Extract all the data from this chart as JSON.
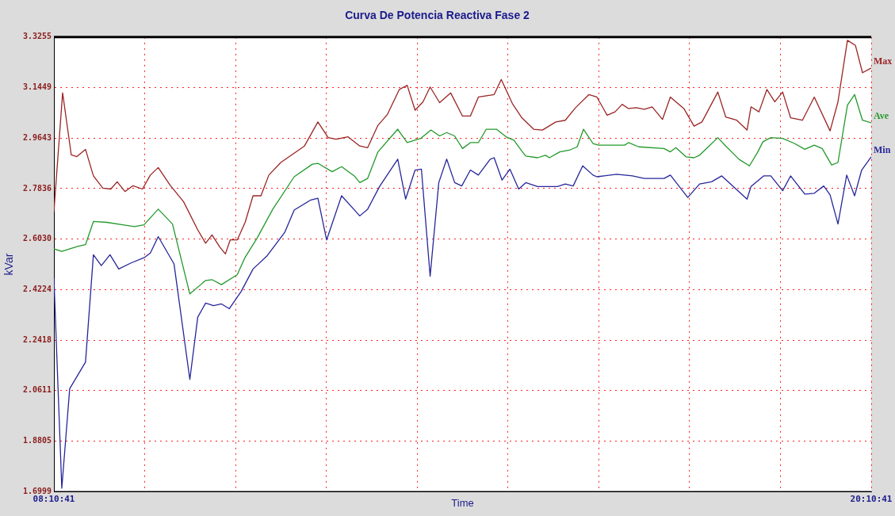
{
  "chart_data": {
    "type": "line",
    "title": "Curva De Potencia Reactiva Fase 2",
    "xlabel": "Time",
    "ylabel": "kVar",
    "xlim": [
      8.1781,
      20.1781
    ],
    "xticks": [
      {
        "value": 8.1781,
        "label": "08:10:41"
      },
      {
        "value": 9.5114,
        "label": null
      },
      {
        "value": 10.8447,
        "label": null
      },
      {
        "value": 12.1781,
        "label": null
      },
      {
        "value": 13.5114,
        "label": null
      },
      {
        "value": 14.8447,
        "label": null
      },
      {
        "value": 16.1781,
        "label": null
      },
      {
        "value": 17.5114,
        "label": null
      },
      {
        "value": 18.8447,
        "label": null
      },
      {
        "value": 20.1781,
        "label": "20:10:41"
      }
    ],
    "ylim": [
      1.6999,
      3.3255
    ],
    "yticks": [
      1.6999,
      1.8805,
      2.0611,
      2.2418,
      2.4224,
      {
        "value": 2.603,
        "label": "2.6030"
      },
      2.7836,
      2.9643,
      3.1449,
      3.3255
    ],
    "grid": true,
    "legend": false,
    "marker": "none",
    "line_style": "solid",
    "series": [
      {
        "name": "Max",
        "color": "#9b2424",
        "x": [
          8.1781,
          8.306,
          8.433,
          8.515,
          8.642,
          8.758,
          8.897,
          9.014,
          9.107,
          9.222,
          9.339,
          9.478,
          9.594,
          9.71,
          9.884,
          10.081,
          10.29,
          10.406,
          10.499,
          10.615,
          10.696,
          10.766,
          10.87,
          10.986,
          11.102,
          11.218,
          11.334,
          11.509,
          11.857,
          12.054,
          12.205,
          12.321,
          12.495,
          12.669,
          12.785,
          12.936,
          13.075,
          13.249,
          13.365,
          13.481,
          13.597,
          13.702,
          13.841,
          14.003,
          14.177,
          14.293,
          14.41,
          14.642,
          14.746,
          14.909,
          15.048,
          15.222,
          15.35,
          15.547,
          15.686,
          15.837,
          16.034,
          16.15,
          16.301,
          16.417,
          16.521,
          16.614,
          16.73,
          16.846,
          16.962,
          17.113,
          17.229,
          17.427,
          17.577,
          17.693,
          17.926,
          18.042,
          18.204,
          18.355,
          18.413,
          18.53,
          18.646,
          18.762,
          18.878,
          18.994,
          19.168,
          19.342,
          19.574,
          19.69,
          19.829,
          19.946,
          20.05,
          20.155,
          20.178
        ],
        "values": [
          2.701,
          3.126,
          2.904,
          2.898,
          2.924,
          2.829,
          2.785,
          2.782,
          2.808,
          2.773,
          2.794,
          2.782,
          2.832,
          2.859,
          2.796,
          2.737,
          2.636,
          2.588,
          2.618,
          2.574,
          2.55,
          2.6,
          2.6,
          2.663,
          2.758,
          2.758,
          2.832,
          2.877,
          2.936,
          3.022,
          2.966,
          2.96,
          2.969,
          2.936,
          2.93,
          3.01,
          3.049,
          3.138,
          3.153,
          3.064,
          3.094,
          3.147,
          3.091,
          3.126,
          3.043,
          3.043,
          3.111,
          3.12,
          3.174,
          3.088,
          3.037,
          2.996,
          2.993,
          3.022,
          3.028,
          3.073,
          3.12,
          3.111,
          3.046,
          3.058,
          3.085,
          3.07,
          3.073,
          3.067,
          3.076,
          3.031,
          3.111,
          3.07,
          3.007,
          3.022,
          3.129,
          3.04,
          3.028,
          2.993,
          3.076,
          3.058,
          3.138,
          3.094,
          3.129,
          3.037,
          3.028,
          3.111,
          2.99,
          3.094,
          3.314,
          3.296,
          3.198,
          3.212,
          3.215
        ]
      },
      {
        "name": "Ave",
        "color": "#22992a",
        "x": [
          8.1781,
          8.294,
          8.526,
          8.642,
          8.758,
          8.955,
          9.188,
          9.362,
          9.501,
          9.71,
          9.919,
          10.174,
          10.406,
          10.499,
          10.638,
          10.87,
          10.986,
          11.16,
          11.392,
          11.706,
          11.973,
          12.054,
          12.263,
          12.402,
          12.588,
          12.669,
          12.785,
          12.936,
          13.226,
          13.365,
          13.562,
          13.713,
          13.841,
          13.945,
          14.062,
          14.177,
          14.293,
          14.41,
          14.526,
          14.677,
          14.816,
          14.932,
          15.048,
          15.106,
          15.28,
          15.396,
          15.454,
          15.605,
          15.745,
          15.861,
          15.954,
          16.093,
          16.174,
          16.557,
          16.614,
          16.765,
          17.136,
          17.229,
          17.31,
          17.461,
          17.577,
          17.658,
          17.774,
          17.926,
          18.042,
          18.239,
          18.39,
          18.507,
          18.588,
          18.704,
          18.878,
          19.052,
          19.203,
          19.342,
          19.458,
          19.597,
          19.69,
          19.829,
          19.934,
          20.05,
          20.178
        ],
        "values": [
          2.568,
          2.559,
          2.577,
          2.583,
          2.666,
          2.663,
          2.654,
          2.648,
          2.654,
          2.71,
          2.657,
          2.407,
          2.455,
          2.458,
          2.44,
          2.476,
          2.538,
          2.606,
          2.71,
          2.826,
          2.871,
          2.874,
          2.844,
          2.862,
          2.829,
          2.805,
          2.82,
          2.915,
          2.996,
          2.948,
          2.963,
          2.993,
          2.972,
          2.984,
          2.972,
          2.927,
          2.948,
          2.948,
          2.996,
          2.996,
          2.969,
          2.957,
          2.918,
          2.9,
          2.894,
          2.903,
          2.894,
          2.915,
          2.921,
          2.933,
          2.996,
          2.945,
          2.939,
          2.939,
          2.948,
          2.933,
          2.927,
          2.915,
          2.93,
          2.897,
          2.894,
          2.903,
          2.93,
          2.966,
          2.936,
          2.888,
          2.865,
          2.912,
          2.951,
          2.966,
          2.963,
          2.945,
          2.924,
          2.939,
          2.927,
          2.868,
          2.877,
          3.082,
          3.12,
          3.028,
          3.019
        ]
      },
      {
        "name": "Min",
        "color": "#26269a",
        "x": [
          8.1781,
          8.294,
          8.41,
          8.642,
          8.758,
          8.874,
          9.002,
          9.13,
          9.304,
          9.513,
          9.594,
          9.71,
          9.942,
          10.174,
          10.29,
          10.406,
          10.522,
          10.638,
          10.754,
          10.928,
          11.102,
          11.311,
          11.567,
          11.706,
          11.95,
          12.054,
          12.182,
          12.402,
          12.669,
          12.785,
          12.959,
          13.226,
          13.342,
          13.481,
          13.574,
          13.702,
          13.829,
          13.945,
          14.062,
          14.166,
          14.293,
          14.41,
          14.584,
          14.642,
          14.758,
          14.874,
          15.002,
          15.106,
          15.28,
          15.57,
          15.686,
          15.802,
          15.942,
          16.093,
          16.15,
          16.44,
          16.672,
          16.846,
          17.137,
          17.229,
          17.485,
          17.658,
          17.833,
          17.984,
          18.355,
          18.413,
          18.599,
          18.704,
          18.878,
          18.994,
          19.203,
          19.342,
          19.481,
          19.574,
          19.69,
          19.818,
          19.934,
          20.038,
          20.178
        ],
        "values": [
          2.464,
          1.712,
          2.068,
          2.163,
          2.547,
          2.508,
          2.547,
          2.496,
          2.517,
          2.538,
          2.553,
          2.612,
          2.514,
          2.101,
          2.324,
          2.374,
          2.365,
          2.371,
          2.354,
          2.416,
          2.496,
          2.544,
          2.627,
          2.707,
          2.743,
          2.749,
          2.6,
          2.758,
          2.686,
          2.71,
          2.791,
          2.889,
          2.746,
          2.85,
          2.853,
          2.47,
          2.805,
          2.889,
          2.805,
          2.793,
          2.85,
          2.832,
          2.889,
          2.894,
          2.814,
          2.853,
          2.782,
          2.805,
          2.791,
          2.791,
          2.8,
          2.793,
          2.865,
          2.832,
          2.826,
          2.835,
          2.829,
          2.82,
          2.82,
          2.832,
          2.752,
          2.8,
          2.808,
          2.829,
          2.746,
          2.791,
          2.829,
          2.829,
          2.776,
          2.829,
          2.764,
          2.767,
          2.793,
          2.761,
          2.657,
          2.832,
          2.758,
          2.85,
          2.897
        ]
      }
    ]
  }
}
